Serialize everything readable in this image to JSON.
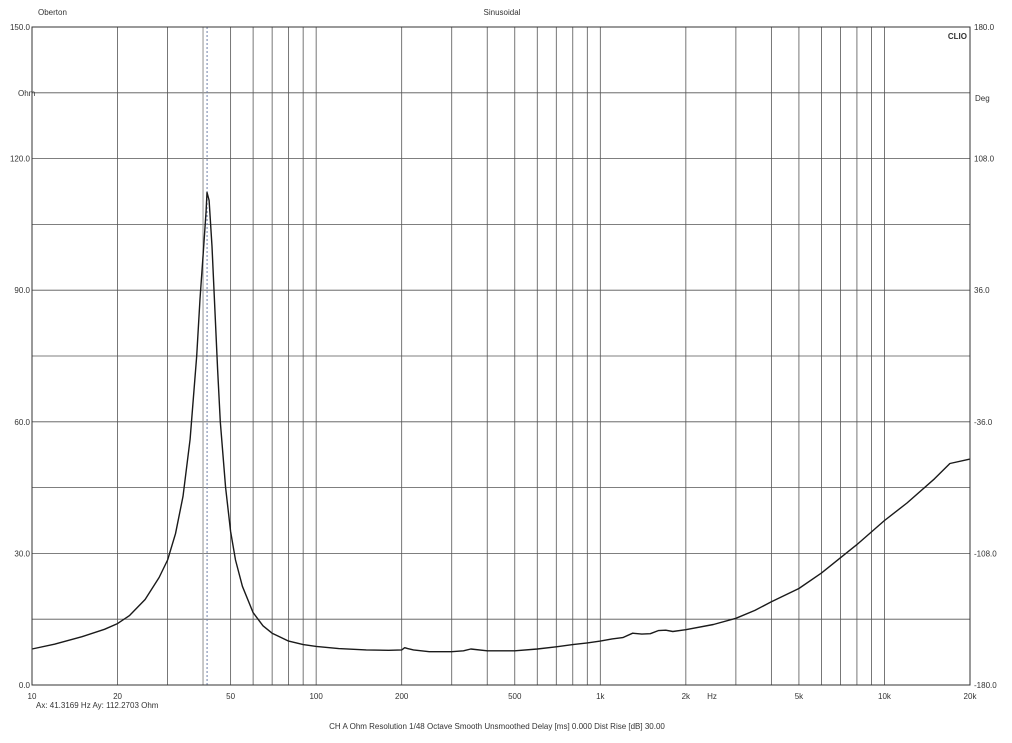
{
  "chart_data": {
    "type": "line",
    "header_left": "Oberton",
    "title": "Sinusoidal",
    "brand": "CLIO",
    "xscale": "log",
    "xlim": [
      10,
      20000
    ],
    "x_ticks": [
      {
        "value": 10,
        "label": "10"
      },
      {
        "value": 20,
        "label": "20"
      },
      {
        "value": 50,
        "label": "50"
      },
      {
        "value": 100,
        "label": "100"
      },
      {
        "value": 200,
        "label": "200"
      },
      {
        "value": 500,
        "label": "500"
      },
      {
        "value": 1000,
        "label": "1k"
      },
      {
        "value": 2000,
        "label": "2k"
      },
      {
        "value": 5000,
        "label": "5k"
      },
      {
        "value": 10000,
        "label": "10k"
      },
      {
        "value": 20000,
        "label": "20k"
      }
    ],
    "x_unit": "Hz",
    "ylim": [
      0,
      150
    ],
    "y_ticks": [
      {
        "value": 0,
        "label": "0.0"
      },
      {
        "value": 30,
        "label": "30.0"
      },
      {
        "value": 60,
        "label": "60.0"
      },
      {
        "value": 90,
        "label": "90.0"
      },
      {
        "value": 120,
        "label": "120.0"
      },
      {
        "value": 150,
        "label": "150.0"
      }
    ],
    "y_unit": "Ohm",
    "y2lim": [
      -180,
      180
    ],
    "y2_ticks": [
      {
        "value": -180,
        "label": "-180.0"
      },
      {
        "value": -108,
        "label": "-108.0"
      },
      {
        "value": -36,
        "label": "-36.0"
      },
      {
        "value": 36,
        "label": "36.0"
      },
      {
        "value": 108,
        "label": "108.0"
      },
      {
        "value": 180,
        "label": "180.0"
      }
    ],
    "y2_unit": "Deg",
    "grid": true,
    "cursor_x": 41.3169,
    "cursor_readout": "Ax: 41.3169 Hz   Ay: 112.2703 Ohm",
    "footer": "CH A   Ohm   Resolution 1/48 Octave   Smooth Unsmoothed   Delay [ms] 0.000   Dist Rise [dB] 30.00",
    "series": [
      {
        "color": "#1a1a1a",
        "x": [
          10,
          12,
          15,
          18,
          20,
          22,
          25,
          28,
          30,
          32,
          34,
          36,
          38,
          39,
          40,
          41,
          41.3,
          42,
          43,
          44,
          45,
          46,
          48,
          50,
          52,
          55,
          60,
          65,
          70,
          80,
          90,
          100,
          120,
          150,
          180,
          200,
          205,
          210,
          220,
          250,
          300,
          330,
          350,
          400,
          500,
          600,
          700,
          800,
          900,
          1000,
          1100,
          1200,
          1300,
          1400,
          1500,
          1600,
          1700,
          1800,
          2000,
          2500,
          3000,
          3500,
          4000,
          5000,
          6000,
          7000,
          8000,
          10000,
          12000,
          15000,
          17000,
          20000
        ],
        "y": [
          8.2,
          9.3,
          11.0,
          12.7,
          14.0,
          15.8,
          19.5,
          24.5,
          28.5,
          34.5,
          43.0,
          56.0,
          75.0,
          88.0,
          98.0,
          108.0,
          112.3,
          110.5,
          100.0,
          86.0,
          72.0,
          60.0,
          45.0,
          35.0,
          28.5,
          22.5,
          16.5,
          13.5,
          11.8,
          10.0,
          9.2,
          8.8,
          8.3,
          8.0,
          7.9,
          8.0,
          8.5,
          8.3,
          8.0,
          7.6,
          7.6,
          7.8,
          8.2,
          7.8,
          7.8,
          8.2,
          8.7,
          9.2,
          9.6,
          10.0,
          10.5,
          10.8,
          11.8,
          11.6,
          11.7,
          12.4,
          12.5,
          12.2,
          12.6,
          13.8,
          15.2,
          17.0,
          19.0,
          22.0,
          25.5,
          29.0,
          32.0,
          37.5,
          41.5,
          47.0,
          50.5,
          51.5
        ]
      }
    ]
  }
}
